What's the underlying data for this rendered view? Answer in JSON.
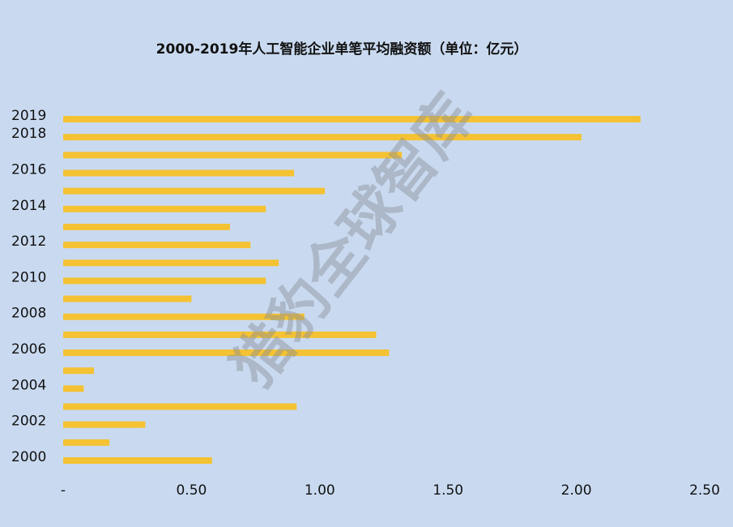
{
  "chart_data": {
    "type": "hbar",
    "title": "2000-2019年人工智能企业单笔平均融资额（单位：亿元）",
    "watermark": "猎豹全球智库",
    "categories": [
      "2019",
      "2018",
      null,
      "2016",
      null,
      "2014",
      null,
      "2012",
      null,
      "2010",
      null,
      "2008",
      null,
      "2006",
      null,
      "2004",
      null,
      "2002",
      null,
      "2000"
    ],
    "values": [
      2.25,
      2.02,
      1.32,
      0.9,
      1.02,
      0.79,
      0.65,
      0.73,
      0.84,
      0.79,
      0.5,
      0.94,
      1.22,
      1.27,
      0.12,
      0.08,
      0.91,
      0.32,
      0.18,
      0.58
    ],
    "color": "#f4c232",
    "xlim": [
      0,
      2.5
    ],
    "xticks": [
      {
        "value": 0,
        "label": "-"
      },
      {
        "value": 0.5,
        "label": "0.50"
      },
      {
        "value": 1,
        "label": "1.00"
      },
      {
        "value": 1.5,
        "label": "1.50"
      },
      {
        "value": 2,
        "label": "2.00"
      },
      {
        "value": 2.5,
        "label": "2.50"
      }
    ],
    "grid": false
  }
}
